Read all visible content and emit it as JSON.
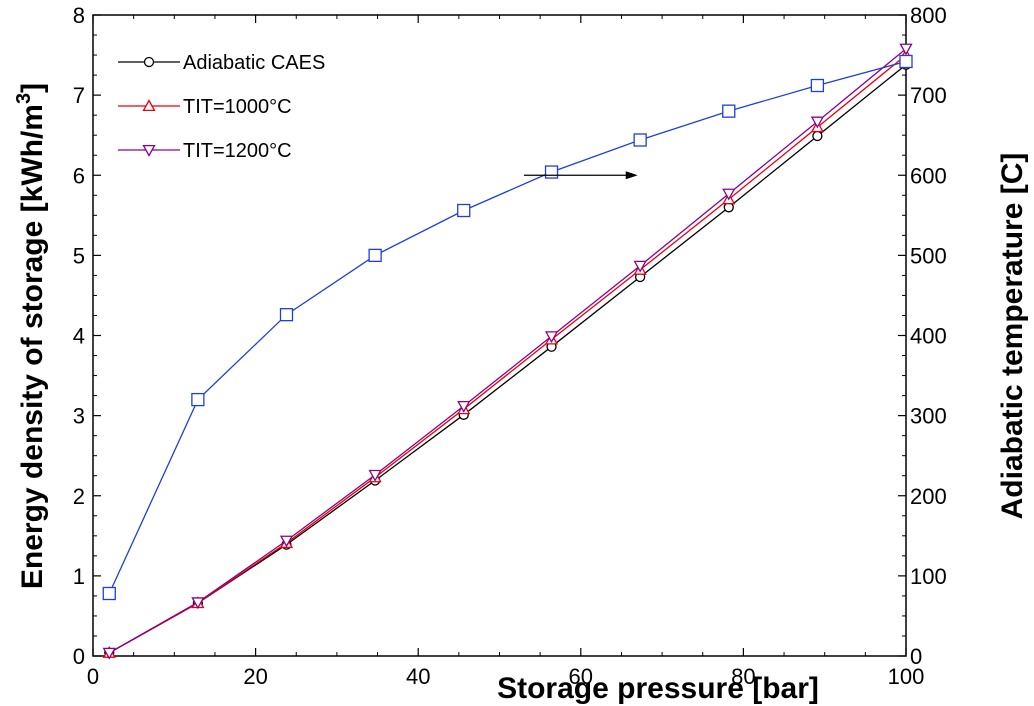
{
  "chart_data": {
    "type": "line",
    "xlabel": "Storage pressure  [bar]",
    "ylabel_left": "Energy density of storage [kWh/m",
    "ylabel_left_sup": "3",
    "ylabel_left_end": "]",
    "ylabel_right": "Adiabatic temperature [C]",
    "xlim": [
      0,
      100
    ],
    "ylim_left": [
      0,
      8
    ],
    "ylim_right": [
      0,
      800
    ],
    "x_ticks": [
      0,
      20,
      40,
      60,
      80,
      100
    ],
    "y_left_ticks": [
      0,
      1,
      2,
      3,
      4,
      5,
      6,
      7,
      8
    ],
    "y_right_ticks": [
      0,
      100,
      200,
      300,
      400,
      500,
      600,
      700,
      800
    ],
    "grid": false,
    "legend_position": "top-left",
    "x": [
      2,
      12.9,
      23.8,
      34.7,
      45.6,
      56.4,
      67.3,
      78.2,
      89.1,
      100
    ],
    "series": [
      {
        "name": "Adiabatic CAES",
        "axis": "left",
        "marker": "circle",
        "color": "#000000",
        "values": [
          0.04,
          0.66,
          1.39,
          2.19,
          3.01,
          3.86,
          4.73,
          5.6,
          6.49,
          7.38
        ]
      },
      {
        "name": "TIT=1000°C",
        "axis": "left",
        "marker": "triangle-up",
        "color": "#e8000b",
        "values": [
          0.04,
          0.66,
          1.41,
          2.23,
          3.08,
          3.95,
          4.82,
          5.7,
          6.6,
          7.5
        ]
      },
      {
        "name": "TIT=1200°C",
        "axis": "left",
        "marker": "triangle-down",
        "color": "#8b008b",
        "values": [
          0.04,
          0.67,
          1.44,
          2.26,
          3.12,
          3.99,
          4.87,
          5.77,
          6.67,
          7.58
        ]
      },
      {
        "name": "",
        "axis": "right",
        "marker": "square",
        "color": "#1f3fd6",
        "values": [
          78,
          320,
          426,
          500,
          556,
          604,
          644,
          680,
          712,
          742
        ]
      }
    ],
    "annotations": [
      {
        "type": "arrow",
        "direction": "right",
        "from": [
          53,
          6.0
        ],
        "to": [
          67,
          6.0
        ]
      }
    ]
  }
}
